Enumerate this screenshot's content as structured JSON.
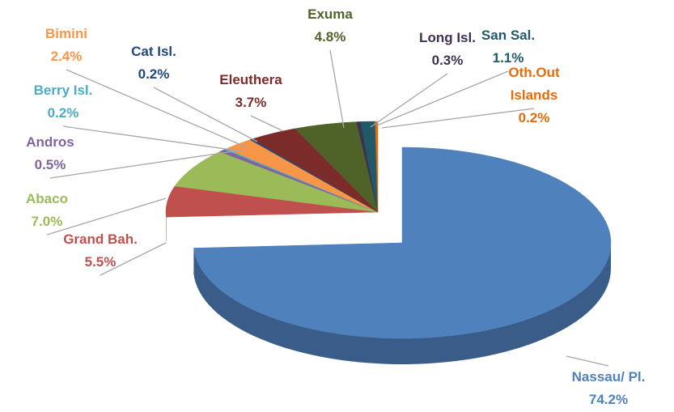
{
  "chart_data": {
    "type": "pie",
    "categories": [
      "Nassau/ Pl.",
      "Grand Bah.",
      "Abaco",
      "Andros",
      "Berry Isl.",
      "Bimini",
      "Cat Isl.",
      "Eleuthera",
      "Exuma",
      "Long Isl.",
      "San Sal.",
      "Oth.Out Islands"
    ],
    "values": [
      74.2,
      5.5,
      7.0,
      0.5,
      0.2,
      2.4,
      0.2,
      3.7,
      4.8,
      0.3,
      1.1,
      0.2
    ],
    "value_labels": [
      "74.2%",
      "5.5%",
      "7.0%",
      "0.5%",
      "0.2%",
      "2.4%",
      "0.2%",
      "3.7%",
      "4.8%",
      "0.3%",
      "1.1%",
      "0.2%"
    ],
    "colors": [
      "#4f81bd",
      "#c0504d",
      "#9bbb59",
      "#8064a2",
      "#4bacc6",
      "#f79646",
      "#1f497d",
      "#7b2c2a",
      "#4f6228",
      "#3f3151",
      "#215968",
      "#e46c0a"
    ]
  }
}
